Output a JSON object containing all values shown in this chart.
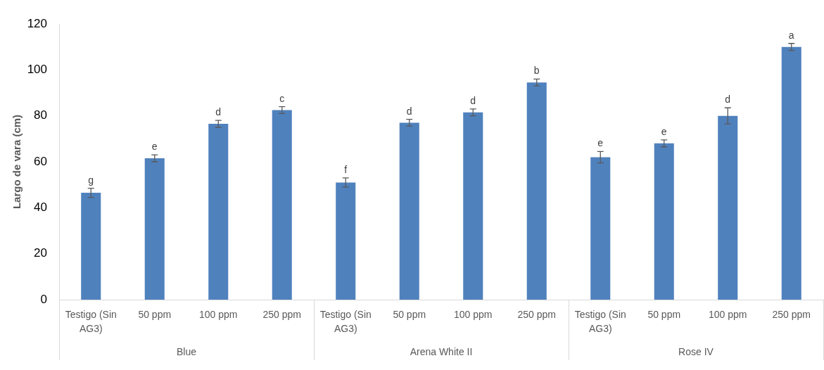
{
  "chart_data": {
    "type": "bar",
    "ylabel": "Largo de vara (cm)",
    "categories": [
      "Blue",
      "Arena White II",
      "Rose IV"
    ],
    "series": [
      {
        "name": "Testigo (Sin AG3)",
        "color": "#4f81bd",
        "values": [
          46.5,
          51,
          62
        ],
        "errors": [
          2,
          2,
          2.5
        ],
        "value_labels": [
          "g",
          "f",
          "e"
        ]
      },
      {
        "name": "50 ppm",
        "color": "#4f81bd",
        "values": [
          61.5,
          77,
          68
        ],
        "errors": [
          1.5,
          1.5,
          1.5
        ],
        "value_labels": [
          "e",
          "d",
          "e"
        ]
      },
      {
        "name": "100 ppm",
        "color": "#4f81bd",
        "values": [
          76.5,
          81.5,
          80
        ],
        "errors": [
          1.5,
          1.5,
          3.5
        ],
        "value_labels": [
          "d",
          "d",
          "d"
        ]
      },
      {
        "name": "250 ppm",
        "color": "#4f81bd",
        "values": [
          82.5,
          94.5,
          110
        ],
        "errors": [
          1.5,
          1.5,
          1.5
        ],
        "value_labels": [
          "c",
          "b",
          "a"
        ]
      }
    ],
    "ylim": [
      0,
      120
    ],
    "yticks": [
      0,
      20,
      40,
      60,
      80,
      100,
      120
    ]
  }
}
